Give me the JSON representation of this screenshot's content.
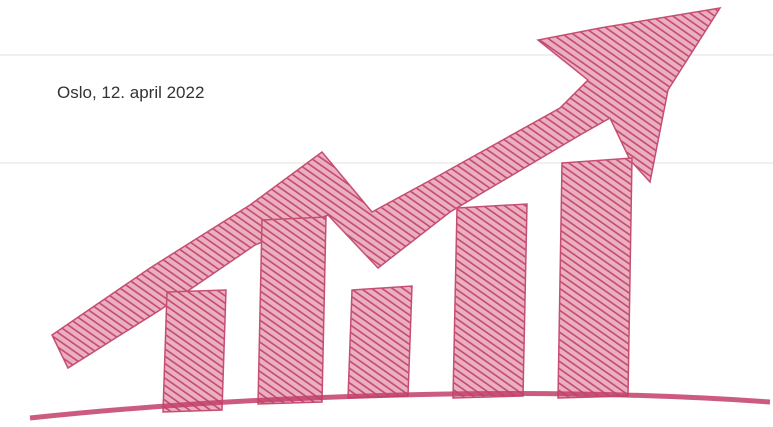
{
  "header": {
    "date": "Oslo, 12. april 2022"
  }
}
